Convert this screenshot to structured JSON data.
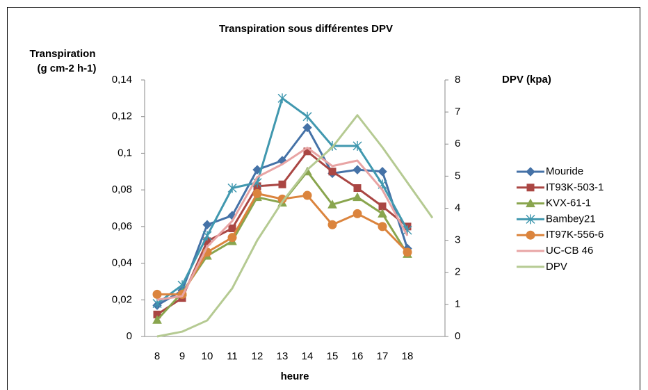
{
  "chart_data": {
    "type": "line",
    "title": "Transpiration sous différentes DPV",
    "ylabel": [
      "Transpiration",
      "(g cm-2 h-1)"
    ],
    "y2label": "DPV (kpa)",
    "xlabel": "heure",
    "categories": [
      "8",
      "9",
      "10",
      "11",
      "12",
      "13",
      "14",
      "15",
      "16",
      "17",
      "18",
      null
    ],
    "ylim": [
      0,
      0.14
    ],
    "yticks": [
      0,
      {
        "value": 0.02,
        "label": "0,02"
      },
      {
        "value": 0.04,
        "label": "0,04"
      },
      {
        "value": 0.06,
        "label": "0,06"
      },
      {
        "value": 0.08,
        "label": "0,08"
      },
      {
        "value": 0.1,
        "label": "0,1"
      },
      {
        "value": 0.12,
        "label": "0,12"
      },
      {
        "value": 0.14,
        "label": "0,14"
      }
    ],
    "y2lim": [
      0,
      8
    ],
    "y2ticks": [
      0,
      1,
      2,
      3,
      4,
      5,
      6,
      7,
      8
    ],
    "grid": false,
    "legend": "right",
    "series": [
      {
        "name": "Mouride",
        "color": "#4572a7",
        "marker": "diamond",
        "values": [
          0.017,
          0.025,
          0.061,
          0.066,
          0.091,
          0.096,
          0.114,
          0.089,
          0.091,
          0.09,
          0.048,
          null
        ]
      },
      {
        "name": "IT93K-503-1",
        "color": "#aa4643",
        "marker": "square",
        "values": [
          0.012,
          0.021,
          0.052,
          0.059,
          0.082,
          0.083,
          0.101,
          0.09,
          0.081,
          0.071,
          0.06,
          null
        ]
      },
      {
        "name": "KVX-61-1",
        "color": "#89a54e",
        "marker": "triangle",
        "values": [
          0.009,
          0.024,
          0.044,
          0.052,
          0.076,
          0.073,
          0.09,
          0.072,
          0.076,
          0.067,
          0.045,
          null
        ]
      },
      {
        "name": "Bambey21",
        "color": "#4198af",
        "marker": "star",
        "values": [
          0.018,
          0.028,
          0.055,
          0.081,
          0.084,
          0.13,
          0.12,
          0.104,
          0.104,
          0.083,
          0.058,
          null
        ]
      },
      {
        "name": "IT97K-556-6",
        "color": "#db843d",
        "marker": "circle",
        "values": [
          0.023,
          0.023,
          0.046,
          0.054,
          0.078,
          0.075,
          0.077,
          0.061,
          0.067,
          0.06,
          0.046,
          null
        ]
      },
      {
        "name": "UC-CB 46",
        "color": "#e8a4a4",
        "marker": "none",
        "values": [
          0.02,
          0.022,
          0.049,
          0.063,
          0.087,
          0.094,
          0.103,
          0.093,
          0.096,
          0.08,
          0.055,
          null
        ]
      },
      {
        "name": "DPV",
        "color": "#b5ca92",
        "marker": "none",
        "axis": "y2",
        "values": [
          0,
          0.15,
          0.5,
          1.5,
          3.0,
          4.2,
          5.2,
          5.9,
          6.9,
          5.9,
          4.8,
          3.7
        ]
      }
    ]
  }
}
